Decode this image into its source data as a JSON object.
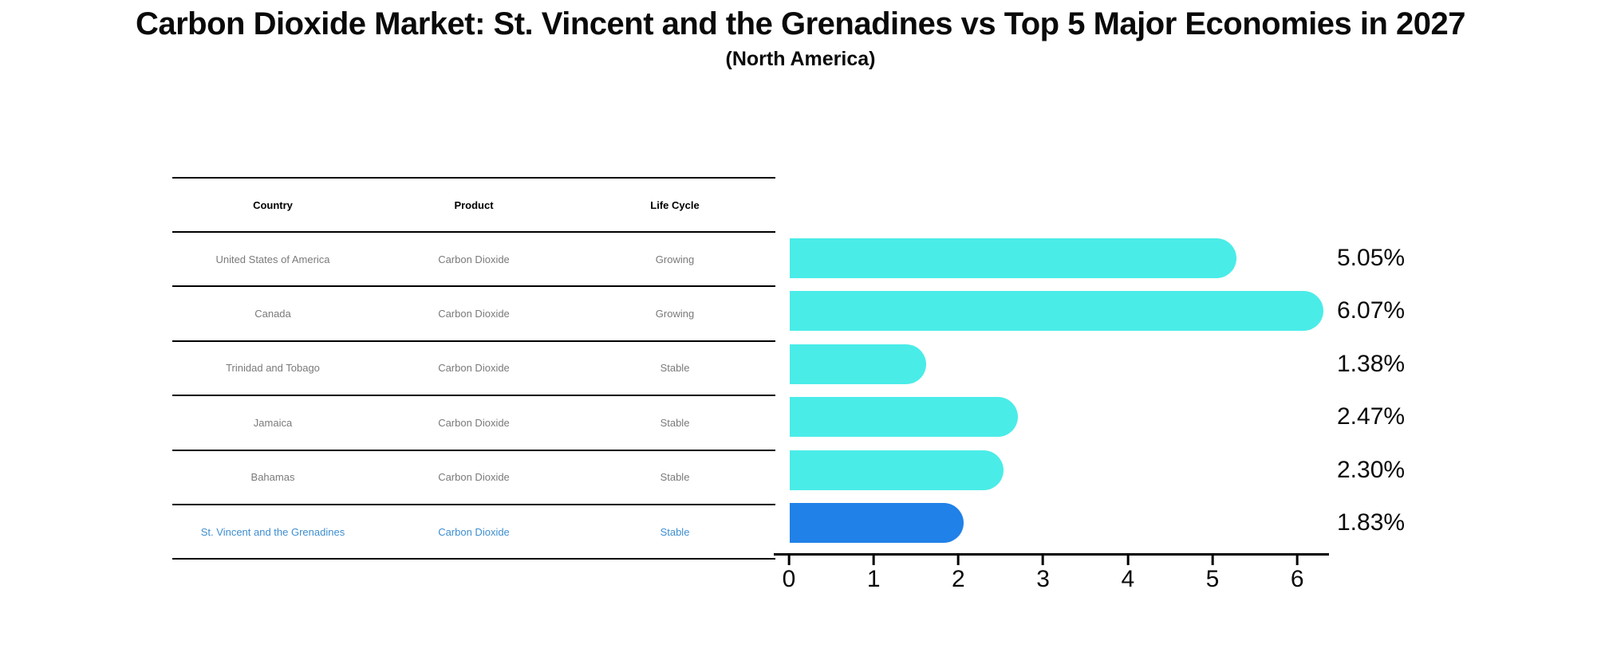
{
  "title": "Carbon Dioxide Market: St. Vincent and the Grenadines vs Top 5 Major Economies in 2027",
  "subtitle": "(North America)",
  "table": {
    "headers": [
      "Country",
      "Product",
      "Life Cycle"
    ],
    "rows": [
      {
        "country": "United States of America",
        "product": "Carbon Dioxide",
        "life_cycle": "Growing"
      },
      {
        "country": "Canada",
        "product": "Carbon Dioxide",
        "life_cycle": "Growing"
      },
      {
        "country": "Trinidad and Tobago",
        "product": "Carbon Dioxide",
        "life_cycle": "Stable"
      },
      {
        "country": "Jamaica",
        "product": "Carbon Dioxide",
        "life_cycle": "Stable"
      },
      {
        "country": "Bahamas",
        "product": "Carbon Dioxide",
        "life_cycle": "Stable"
      },
      {
        "country": "St. Vincent and the Grenadines",
        "product": "Carbon Dioxide",
        "life_cycle": "Stable"
      }
    ],
    "highlight_row_index": 5
  },
  "chart_data": {
    "type": "bar",
    "orientation": "horizontal",
    "title": "Carbon Dioxide Market: St. Vincent and the Grenadines vs Top 5 Major Economies in 2027",
    "subtitle": "(North America)",
    "categories": [
      "United States of America",
      "Canada",
      "Trinidad and Tobago",
      "Jamaica",
      "Bahamas",
      "St. Vincent and the Grenadines"
    ],
    "values": [
      5.05,
      6.07,
      1.38,
      2.47,
      2.3,
      1.83
    ],
    "value_labels": [
      "5.05%",
      "6.07%",
      "1.38%",
      "2.47%",
      "2.30%",
      "1.83%"
    ],
    "xlabel": "",
    "ylabel": "",
    "xlim": [
      0,
      6.4
    ],
    "xticks": [
      "0",
      "1",
      "2",
      "3",
      "4",
      "5",
      "6"
    ],
    "grid": false,
    "legend": false,
    "bar_color": "#4aece8",
    "highlight_bar_color": "#2081e8",
    "highlight_index": 5,
    "highlight_text_color": "#3e8ed0",
    "table_text_color": "#7a7a7a",
    "bar_edge_style_highlight": "dotted"
  }
}
